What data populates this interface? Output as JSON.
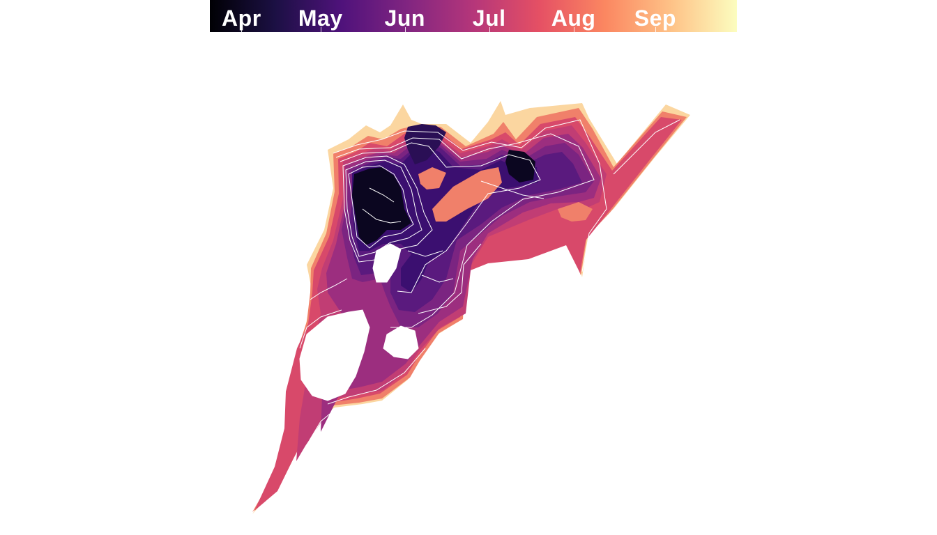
{
  "legend": {
    "months": [
      {
        "label": "Apr",
        "fraction": 0.06
      },
      {
        "label": "May",
        "fraction": 0.21
      },
      {
        "label": "Jun",
        "fraction": 0.37
      },
      {
        "label": "Jul",
        "fraction": 0.53
      },
      {
        "label": "Aug",
        "fraction": 0.69
      },
      {
        "label": "Sep",
        "fraction": 0.845
      }
    ],
    "gradient_stops": [
      "#000004",
      "#1c1044",
      "#4f127b",
      "#812581",
      "#b5367a",
      "#e55064",
      "#fb8761",
      "#fec287",
      "#fcfdbf"
    ]
  },
  "map": {
    "region_colors": {
      "earliest": "#0b0620",
      "apr_late": "#2a0f55",
      "may": "#3b0f70",
      "may_late": "#5a1a7e",
      "jun": "#7b2481",
      "jun_late": "#9c2e7f",
      "jul": "#c13d74",
      "jul_late": "#d8496a",
      "aug": "#f0806a",
      "sep": "#fbd6a0",
      "contour": "#ffffff"
    }
  }
}
